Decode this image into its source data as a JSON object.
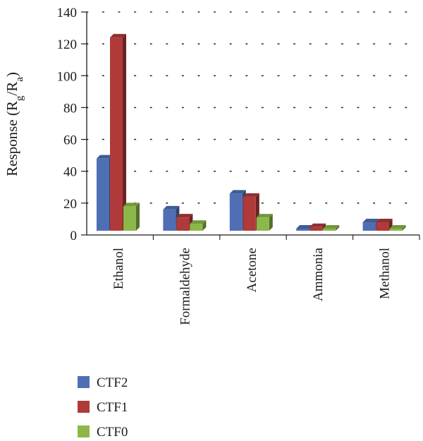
{
  "chart_data": {
    "type": "bar",
    "categories": [
      "Ethanol",
      "Formaldehyde",
      "Acetone",
      "Ammonia",
      "Methanol"
    ],
    "series": [
      {
        "name": "CTF2",
        "color": "#4f6fb5",
        "values": [
          48,
          16,
          26,
          4,
          8
        ]
      },
      {
        "name": "CTF1",
        "color": "#b03a3a",
        "values": [
          124,
          11,
          24,
          5,
          8
        ]
      },
      {
        "name": "CTF0",
        "color": "#8cb84a",
        "values": [
          18,
          7,
          11,
          4,
          4
        ]
      }
    ],
    "ylabel": {
      "main": "Response (R",
      "sub1": "g",
      "sep": "/R",
      "sub2": "a",
      "end": ")"
    },
    "ylim": [
      0,
      140
    ],
    "yticks": [
      "0",
      "20",
      "40",
      "60",
      "80",
      "100",
      "120",
      "140"
    ],
    "grid": "dotted horizontal",
    "legend_position": "bottom-left"
  }
}
